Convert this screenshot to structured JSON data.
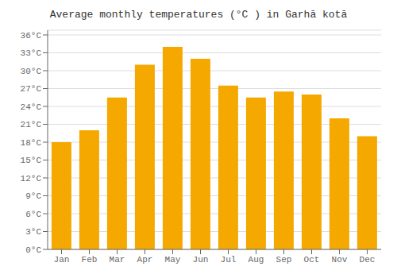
{
  "chart_data": {
    "type": "bar",
    "title": "Average monthly temperatures (°C ) in Garhā kotā",
    "categories": [
      "Jan",
      "Feb",
      "Mar",
      "Apr",
      "May",
      "Jun",
      "Jul",
      "Aug",
      "Sep",
      "Oct",
      "Nov",
      "Dec"
    ],
    "values": [
      18,
      20,
      25.5,
      31,
      34,
      32,
      27.5,
      25.5,
      26.5,
      26,
      22,
      19
    ],
    "color": "#F5A800",
    "ylim": [
      0,
      36.8
    ],
    "yticks": [
      {
        "value": 0,
        "label": "0°C"
      },
      {
        "value": 3,
        "label": "3°C"
      },
      {
        "value": 6,
        "label": "6°C"
      },
      {
        "value": 9,
        "label": "9°C"
      },
      {
        "value": 12,
        "label": "12°C"
      },
      {
        "value": 15,
        "label": "15°C"
      },
      {
        "value": 18,
        "label": "18°C"
      },
      {
        "value": 21,
        "label": "21°C"
      },
      {
        "value": 24,
        "label": "24°C"
      },
      {
        "value": 27,
        "label": "27°C"
      },
      {
        "value": 30,
        "label": "30°C"
      },
      {
        "value": 33,
        "label": "33°C"
      },
      {
        "value": 36,
        "label": "36°C"
      }
    ],
    "grid": true
  }
}
